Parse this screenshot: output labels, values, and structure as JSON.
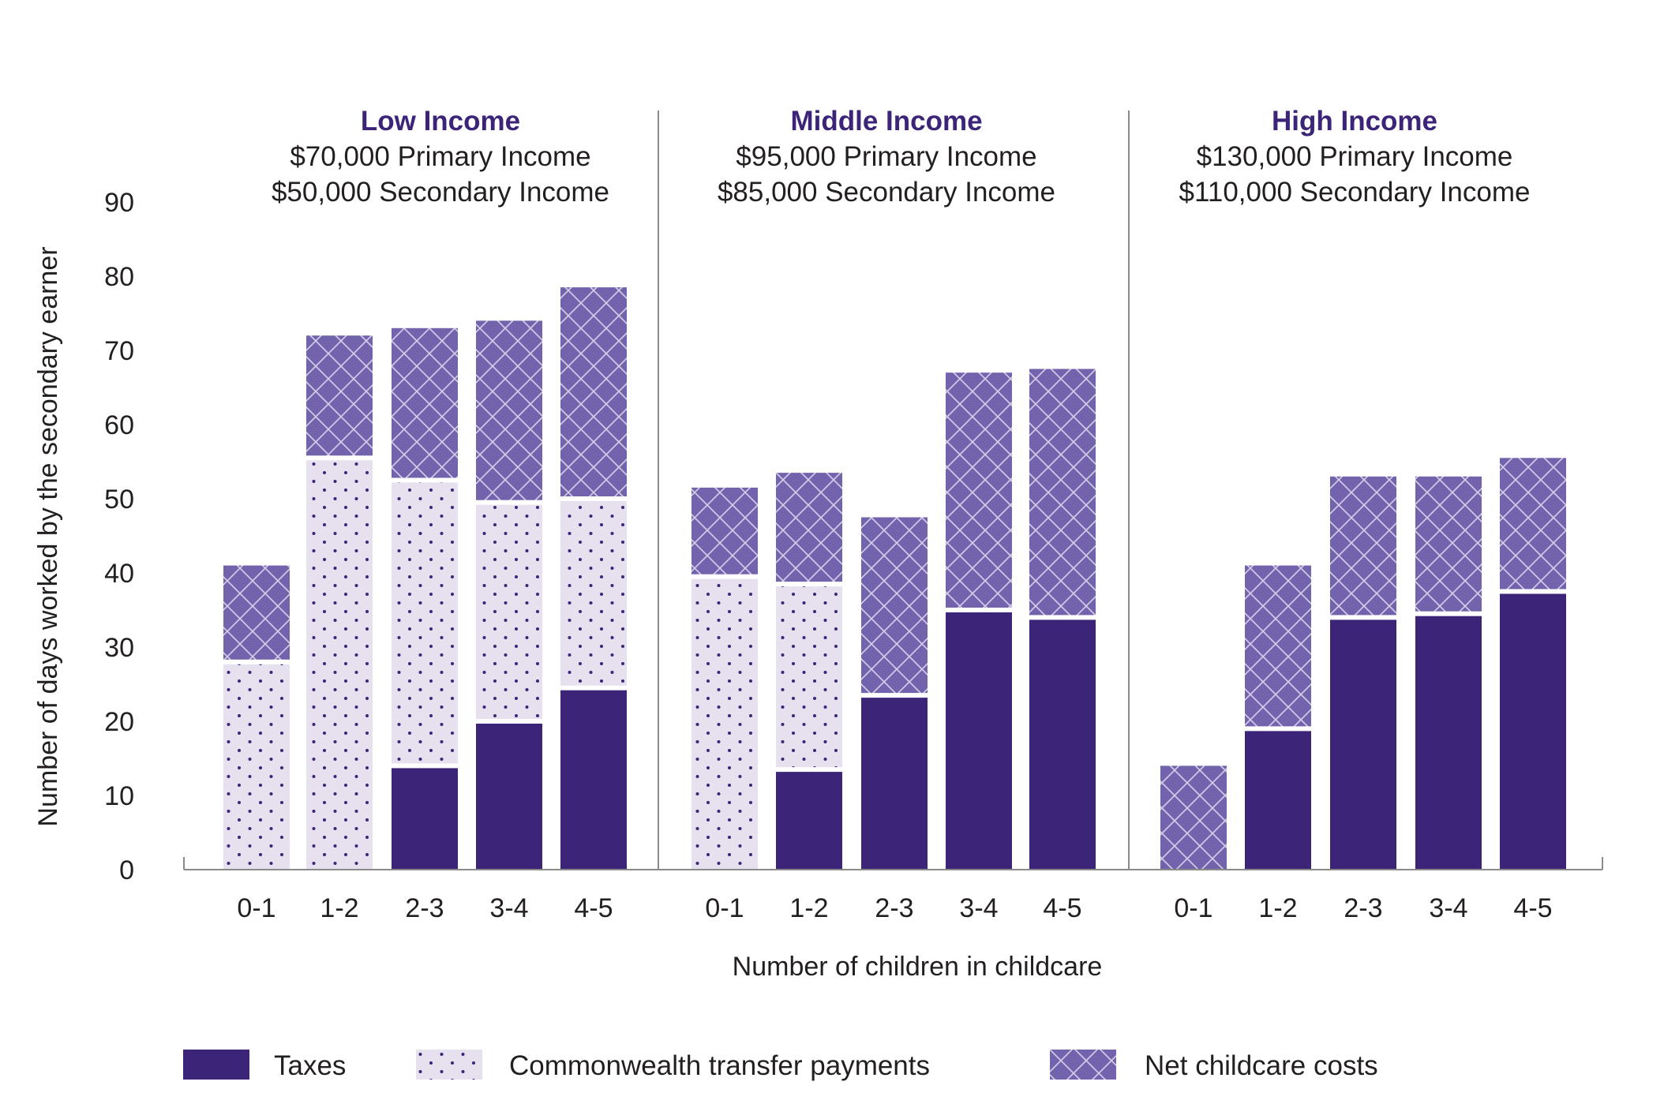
{
  "colors": {
    "taxes": "#3c2578",
    "transfers_bg": "#e6e0ef",
    "transfers_dot": "#3c2578",
    "childcare": "#7363ad",
    "childcare_line": "#d6d0ea",
    "text": "#231f20",
    "title": "#3c2578",
    "axis": "#8a8a8a"
  },
  "chart_data": {
    "type": "bar",
    "stacked": true,
    "ylabel": "Number of days worked by the secondary earner",
    "xlabel": "Number of children in childcare",
    "ylim": [
      0,
      90
    ],
    "yticks": [
      0,
      10,
      20,
      30,
      40,
      50,
      60,
      70,
      80,
      90
    ],
    "categories": [
      "0-1",
      "1-2",
      "2-3",
      "3-4",
      "4-5"
    ],
    "legend_position": "bottom",
    "series_names": [
      "Taxes",
      "Commonwealth transfer payments",
      "Net childcare costs"
    ],
    "groups": [
      {
        "title": "Low Income",
        "subtitle1": "$70,000 Primary Income",
        "subtitle2": "$50,000 Secondary Income",
        "series": [
          {
            "name": "Taxes",
            "values": [
              0,
              0,
              14,
              20,
              24.5
            ]
          },
          {
            "name": "Commonwealth transfer payments",
            "values": [
              28,
              55.5,
              38.5,
              29.5,
              25.5
            ]
          },
          {
            "name": "Net childcare costs",
            "values": [
              13,
              16.5,
              20.5,
              24.5,
              28.5
            ]
          }
        ]
      },
      {
        "title": "Middle Income",
        "subtitle1": "$95,000 Primary Income",
        "subtitle2": "$85,000 Secondary Income",
        "series": [
          {
            "name": "Taxes",
            "values": [
              0,
              13.5,
              23.5,
              35,
              34
            ]
          },
          {
            "name": "Commonwealth transfer payments",
            "values": [
              39.5,
              25,
              0,
              0,
              0
            ]
          },
          {
            "name": "Net childcare costs",
            "values": [
              12,
              15,
              24,
              32,
              33.5
            ]
          }
        ]
      },
      {
        "title": "High Income",
        "subtitle1": "$130,000 Primary Income",
        "subtitle2": "$110,000 Secondary Income",
        "series": [
          {
            "name": "Taxes",
            "values": [
              0,
              19,
              34,
              34.5,
              37.5
            ]
          },
          {
            "name": "Commonwealth transfer payments",
            "values": [
              0,
              0,
              0,
              0,
              0
            ]
          },
          {
            "name": "Net childcare costs",
            "values": [
              14,
              22,
              19,
              18.5,
              18
            ]
          }
        ]
      }
    ]
  }
}
